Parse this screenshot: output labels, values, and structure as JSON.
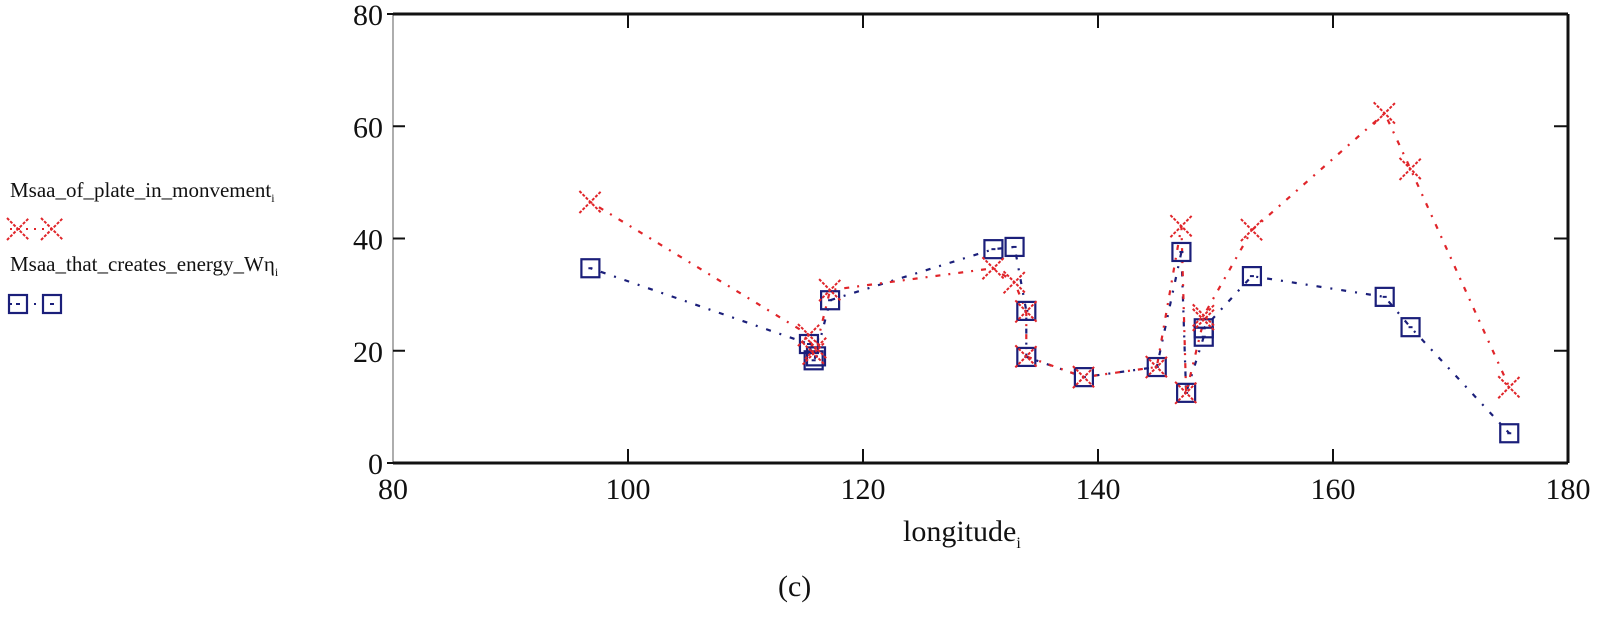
{
  "chart_data": {
    "type": "line",
    "title": "",
    "xlabel": "longitude",
    "xlabel_subscript": "i",
    "ylabel": "",
    "xlim": [
      80,
      180
    ],
    "ylim": [
      0,
      80
    ],
    "xticks": [
      "80",
      "100",
      "120",
      "140",
      "160",
      "180"
    ],
    "yticks": [
      "0",
      "20",
      "40",
      "60",
      "80"
    ],
    "grid": false,
    "legend_placement": "left",
    "caption": "(c)",
    "x": [
      96.8,
      115.4,
      115.8,
      116.0,
      117.2,
      131.1,
      132.9,
      133.9,
      133.9,
      138.8,
      145.0,
      147.1,
      147.5,
      149.0,
      149.0,
      153.1,
      164.4,
      166.6,
      175.0
    ],
    "series": [
      {
        "name": "Msaa_of_plate_in_monvement",
        "subscript": "i",
        "marker": "x",
        "color": "#e0252a",
        "values": [
          46.5,
          22.8,
          19.5,
          20.5,
          30.8,
          34.7,
          32.2,
          27.0,
          19.0,
          15.3,
          17.1,
          42.2,
          12.5,
          25.5,
          26.3,
          41.5,
          62.3,
          52.4,
          13.5
        ]
      },
      {
        "name": "Msaa_that_creates_energy_Wη",
        "subscript": "i",
        "marker": "square",
        "color": "#1b1f7a",
        "values": [
          34.7,
          21.2,
          18.3,
          19.0,
          29.0,
          38.1,
          38.5,
          27.1,
          18.9,
          15.3,
          17.1,
          37.6,
          12.5,
          22.5,
          24.0,
          33.3,
          29.6,
          24.2,
          5.3
        ]
      }
    ]
  }
}
